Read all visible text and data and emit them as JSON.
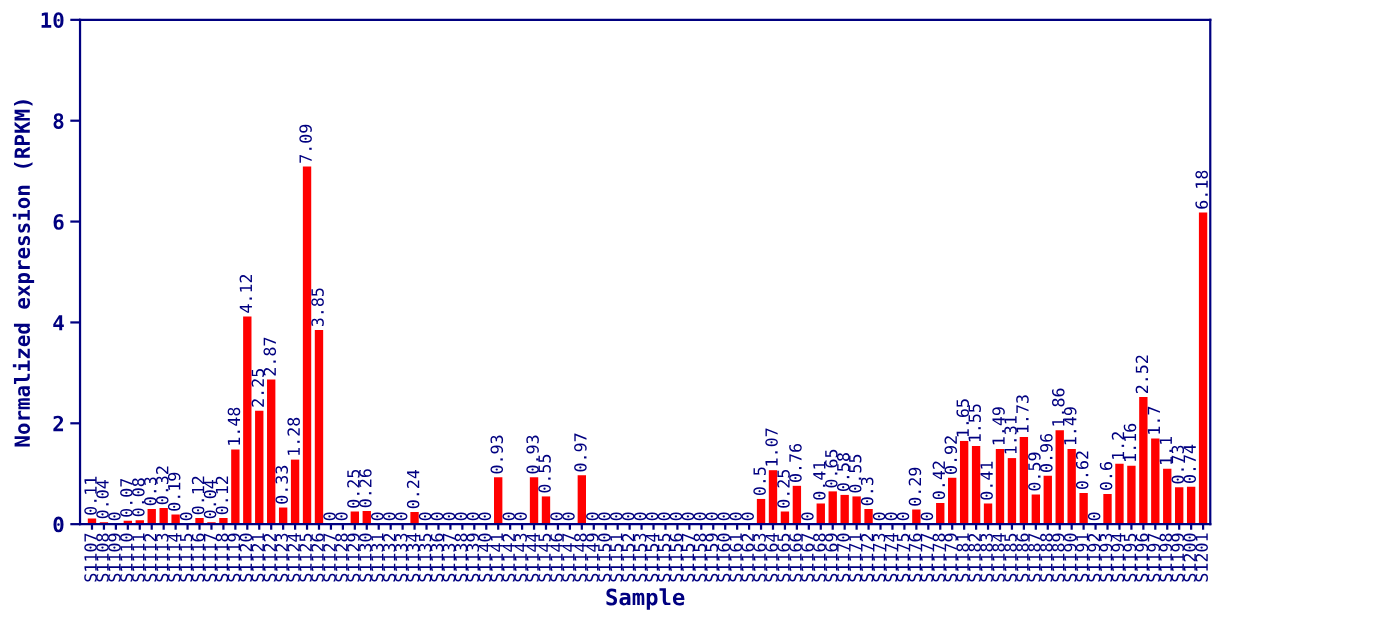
{
  "chart_data": {
    "type": "bar",
    "xlabel": "Sample",
    "ylabel": "Normalized expression (RPKM)",
    "categories": [
      "S1107",
      "S1108",
      "S1109",
      "S1110",
      "S1111",
      "S1112",
      "S1113",
      "S1114",
      "S1115",
      "S1116",
      "S1117",
      "S1118",
      "S1119",
      "S1120",
      "S1121",
      "S1122",
      "S1123",
      "S1124",
      "S1125",
      "S1126",
      "S1127",
      "S1128",
      "S1129",
      "S1130",
      "S1131",
      "S1132",
      "S1133",
      "S1134",
      "S1135",
      "S1136",
      "S1137",
      "S1138",
      "S1139",
      "S1140",
      "S1141",
      "S1142",
      "S1143",
      "S1144",
      "S1145",
      "S1146",
      "S1147",
      "S1148",
      "S1149",
      "S1150",
      "S1151",
      "S1152",
      "S1153",
      "S1154",
      "S1155",
      "S1156",
      "S1157",
      "S1158",
      "S1159",
      "S1160",
      "S1161",
      "S1162",
      "S1163",
      "S1164",
      "S1165",
      "S1166",
      "S1167",
      "S1168",
      "S1169",
      "S1170",
      "S1171",
      "S1172",
      "S1173",
      "S1174",
      "S1175",
      "S1176",
      "S1177",
      "S1178",
      "S1179",
      "S1181",
      "S1182",
      "S1183",
      "S1184",
      "S1185",
      "S1186",
      "S1187",
      "S1188",
      "S1189",
      "S1190",
      "S1191",
      "S1192",
      "S1193",
      "S1194",
      "S1195",
      "S1196",
      "S1197",
      "S1198",
      "S1199",
      "S1200",
      "S1201"
    ],
    "values": [
      0.11,
      0.04,
      0,
      0.07,
      0.08,
      0.3,
      0.32,
      0.19,
      0,
      0.12,
      0.04,
      0.12,
      1.48,
      4.12,
      2.25,
      2.87,
      0.33,
      1.28,
      7.09,
      3.85,
      0,
      0,
      0.25,
      0.26,
      0,
      0,
      0,
      0.24,
      0,
      0,
      0,
      0,
      0,
      0,
      0.93,
      0,
      0,
      0.93,
      0.55,
      0,
      0,
      0.97,
      0,
      0,
      0,
      0,
      0,
      0,
      0,
      0,
      0,
      0,
      0,
      0,
      0,
      0,
      0.5,
      1.07,
      0.25,
      0.76,
      0,
      0.41,
      0.65,
      0.58,
      0.55,
      0.3,
      0,
      0,
      0,
      0.29,
      0,
      0.42,
      0.92,
      1.65,
      1.55,
      0.41,
      1.49,
      1.31,
      1.73,
      0.59,
      0.96,
      1.86,
      1.49,
      0.62,
      0,
      0.6,
      1.2,
      1.16,
      2.52,
      1.7,
      1.1,
      0.73,
      0.74,
      6.18
    ],
    "color": "#ff0000",
    "ylim": [
      0,
      10
    ],
    "yticks": [
      0,
      2,
      4,
      6,
      8,
      10
    ],
    "data_labels": true,
    "grid": false,
    "legend": false
  }
}
